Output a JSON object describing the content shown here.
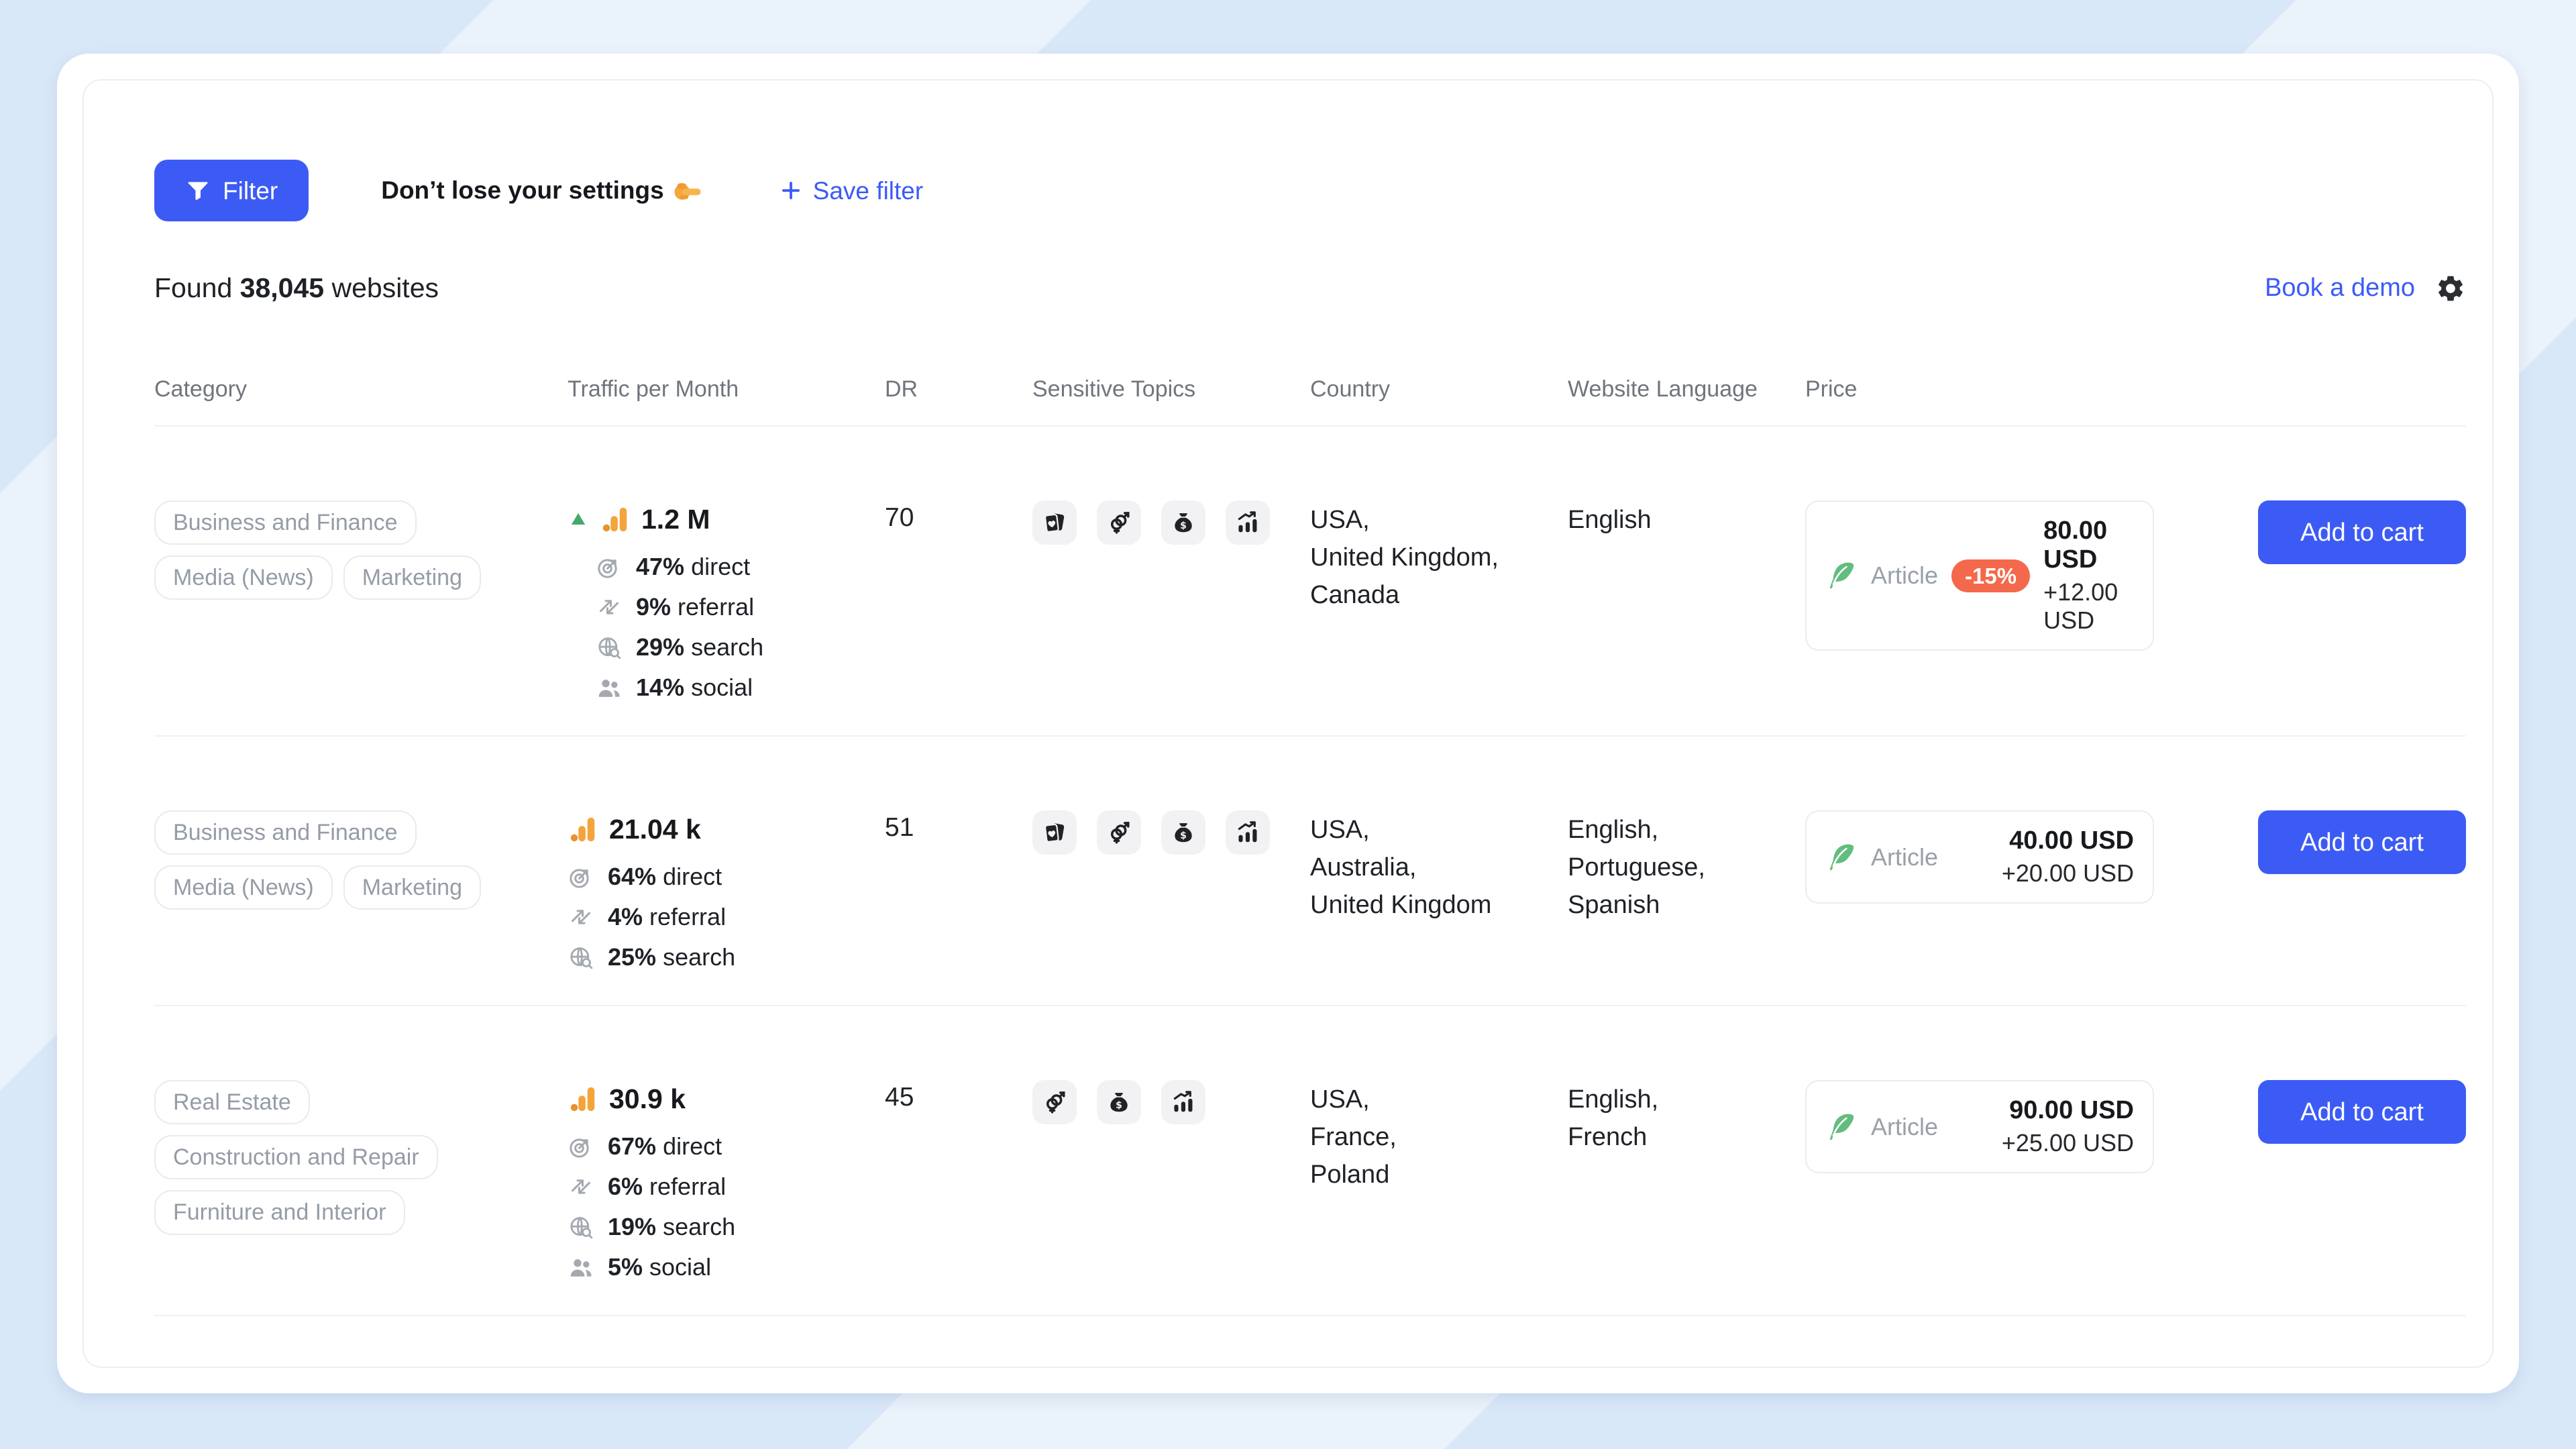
{
  "toolbar": {
    "filter_label": "Filter",
    "hint_text": "Don’t lose your settings",
    "hint_emoji_icon": "pointing-right",
    "save_filter_label": "Save filter"
  },
  "summary": {
    "prefix": "Found",
    "count": "38,045",
    "suffix": "websites"
  },
  "actions": {
    "book_demo_label": "Book a demo"
  },
  "table": {
    "columns": [
      "Category",
      "Traffic per Month",
      "DR",
      "Sensitive Topics",
      "Country",
      "Website Language",
      "Price"
    ],
    "add_to_cart_label": "Add to cart",
    "rows": [
      {
        "categories": [
          "Business and Finance",
          "Media (News)",
          "Marketing"
        ],
        "traffic": {
          "value": "1.2 M",
          "trending_up": true,
          "breakdown": [
            {
              "pct": "47%",
              "label": "direct",
              "icon": "direct"
            },
            {
              "pct": "9%",
              "label": "referral",
              "icon": "referral"
            },
            {
              "pct": "29%",
              "label": "search",
              "icon": "search"
            },
            {
              "pct": "14%",
              "label": "social",
              "icon": "social"
            }
          ]
        },
        "dr": "70",
        "sensitive_topics": [
          "gambling",
          "dating",
          "loans",
          "trading"
        ],
        "countries": "USA,\nUnited Kingdom,\nCanada",
        "languages": "English",
        "price": {
          "type": "Article",
          "discount": "-15%",
          "amount": "80.00 USD",
          "extra": "+12.00 USD"
        }
      },
      {
        "categories": [
          "Business and Finance",
          "Media (News)",
          "Marketing"
        ],
        "traffic": {
          "value": "21.04 k",
          "trending_up": false,
          "breakdown": [
            {
              "pct": "64%",
              "label": "direct",
              "icon": "direct"
            },
            {
              "pct": "4%",
              "label": "referral",
              "icon": "referral"
            },
            {
              "pct": "25%",
              "label": "search",
              "icon": "search"
            }
          ]
        },
        "dr": "51",
        "sensitive_topics": [
          "gambling",
          "dating",
          "loans",
          "trading"
        ],
        "countries": "USA,\nAustralia,\nUnited Kingdom",
        "languages": "English,\nPortuguese,\nSpanish",
        "price": {
          "type": "Article",
          "discount": "",
          "amount": "40.00 USD",
          "extra": "+20.00 USD"
        }
      },
      {
        "categories": [
          "Real Estate",
          "Construction and Repair",
          "Furniture and Interior"
        ],
        "traffic": {
          "value": "30.9 k",
          "trending_up": false,
          "breakdown": [
            {
              "pct": "67%",
              "label": "direct",
              "icon": "direct"
            },
            {
              "pct": "6%",
              "label": "referral",
              "icon": "referral"
            },
            {
              "pct": "19%",
              "label": "search",
              "icon": "search"
            },
            {
              "pct": "5%",
              "label": "social",
              "icon": "social"
            }
          ]
        },
        "dr": "45",
        "sensitive_topics": [
          "dating",
          "loans",
          "trading"
        ],
        "countries": "USA,\nFrance,\nPoland",
        "languages": "English,\nFrench",
        "price": {
          "type": "Article",
          "discount": "",
          "amount": "90.00 USD",
          "extra": "+25.00 USD"
        }
      }
    ]
  },
  "colors": {
    "accent": "#3C5BF5",
    "badge": "#F4684C",
    "bars_orange": "#F4A43C",
    "trend_green": "#46A96B",
    "feather_green": "#62BD7E",
    "background_blue": "#D9E8F8"
  }
}
